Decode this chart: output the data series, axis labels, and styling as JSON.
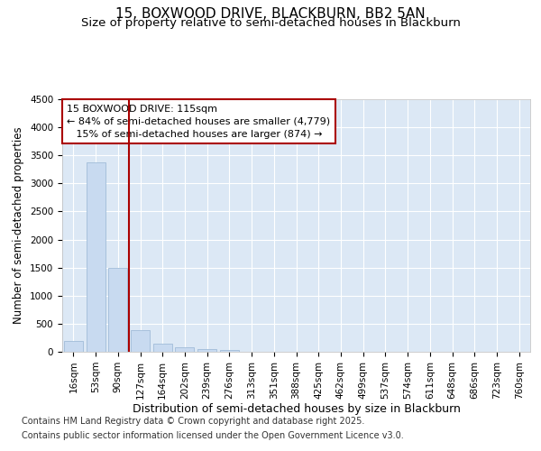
{
  "title_line1": "15, BOXWOOD DRIVE, BLACKBURN, BB2 5AN",
  "title_line2": "Size of property relative to semi-detached houses in Blackburn",
  "xlabel": "Distribution of semi-detached houses by size in Blackburn",
  "ylabel": "Number of semi-detached properties",
  "categories": [
    "16sqm",
    "53sqm",
    "90sqm",
    "127sqm",
    "164sqm",
    "202sqm",
    "239sqm",
    "276sqm",
    "313sqm",
    "351sqm",
    "388sqm",
    "425sqm",
    "462sqm",
    "499sqm",
    "537sqm",
    "574sqm",
    "611sqm",
    "648sqm",
    "686sqm",
    "723sqm",
    "760sqm"
  ],
  "values": [
    190,
    3380,
    1500,
    380,
    145,
    75,
    50,
    40,
    5,
    0,
    0,
    5,
    0,
    0,
    0,
    0,
    0,
    0,
    0,
    0,
    0
  ],
  "bar_color": "#c8daf0",
  "bar_edge_color": "#a0bcd8",
  "vline_color": "#aa0000",
  "annotation_title": "15 BOXWOOD DRIVE: 115sqm",
  "annotation_line1": "← 84% of semi-detached houses are smaller (4,779)",
  "annotation_line2": "15% of semi-detached houses are larger (874) →",
  "annotation_box_facecolor": "#ffffff",
  "annotation_box_edgecolor": "#aa0000",
  "ylim": [
    0,
    4500
  ],
  "yticks": [
    0,
    500,
    1000,
    1500,
    2000,
    2500,
    3000,
    3500,
    4000,
    4500
  ],
  "background_color": "#dce8f5",
  "grid_color": "#ffffff",
  "title_fontsize": 11,
  "subtitle_fontsize": 9.5,
  "ylabel_fontsize": 8.5,
  "xlabel_fontsize": 9,
  "tick_fontsize": 7.5,
  "annotation_fontsize": 8,
  "footer_fontsize": 7,
  "footer_line1": "Contains HM Land Registry data © Crown copyright and database right 2025.",
  "footer_line2": "Contains public sector information licensed under the Open Government Licence v3.0."
}
